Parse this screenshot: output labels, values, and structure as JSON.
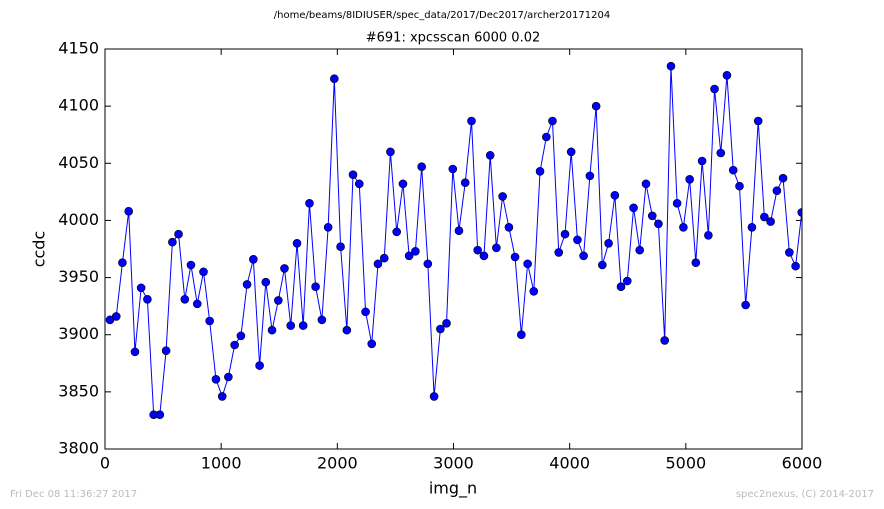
{
  "chart_data": {
    "type": "line",
    "suptitle": "/home/beams/8IDIUSER/spec_data/2017/Dec2017/archer20171204",
    "title": "#691: xpcsscan 6000 0.02",
    "x_label": "img_n",
    "y_label": "ccdc",
    "timestamp": "Fri Dec 08 11:36:27 2017",
    "credit": "spec2nexus, (C) 2014-2017",
    "xlim": [
      0,
      6000
    ],
    "ylim": [
      3800,
      4150
    ],
    "xticks": [
      0,
      1000,
      2000,
      3000,
      4000,
      5000,
      6000
    ],
    "yticks": [
      3800,
      3850,
      3900,
      3950,
      4000,
      4050,
      4100,
      4150
    ],
    "grid": false,
    "x": [
      43,
      97,
      150,
      204,
      258,
      311,
      365,
      419,
      472,
      526,
      580,
      633,
      687,
      740,
      794,
      848,
      901,
      955,
      1009,
      1062,
      1116,
      1170,
      1223,
      1277,
      1331,
      1384,
      1438,
      1492,
      1545,
      1599,
      1653,
      1706,
      1760,
      1813,
      1867,
      1921,
      1974,
      2028,
      2082,
      2135,
      2189,
      2243,
      2296,
      2350,
      2404,
      2457,
      2511,
      2565,
      2618,
      2672,
      2726,
      2779,
      2833,
      2887,
      2940,
      2994,
      3047,
      3101,
      3155,
      3208,
      3262,
      3316,
      3369,
      3423,
      3477,
      3530,
      3584,
      3638,
      3691,
      3745,
      3799,
      3852,
      3906,
      3960,
      4013,
      4067,
      4120,
      4174,
      4228,
      4281,
      4335,
      4389,
      4442,
      4496,
      4550,
      4603,
      4657,
      4711,
      4764,
      4818,
      4872,
      4925,
      4979,
      5033,
      5086,
      5140,
      5194,
      5247,
      5301,
      5354,
      5408,
      5462,
      5515,
      5569,
      5623,
      5676,
      5730,
      5784,
      5837,
      5891,
      5945,
      5998
    ],
    "series": [
      {
        "color": "#0000ff",
        "values": [
          3913,
          3916,
          3963,
          4008,
          3885,
          3941,
          3931,
          3830,
          3830,
          3886,
          3981,
          3988,
          3931,
          3961,
          3927,
          3955,
          3912,
          3861,
          3846,
          3863,
          3891,
          3899,
          3944,
          3966,
          3873,
          3946,
          3904,
          3930,
          3958,
          3908,
          3980,
          3908,
          4015,
          3942,
          3913,
          3994,
          4124,
          3977,
          3904,
          4040,
          4032,
          3920,
          3892,
          3962,
          3967,
          4060,
          3990,
          4032,
          3969,
          3973,
          4047,
          3962,
          3846,
          3905,
          3910,
          4045,
          3991,
          4033,
          4087,
          3974,
          3969,
          4057,
          3976,
          4021,
          3994,
          3968,
          3900,
          3962,
          3938,
          4043,
          4073,
          4087,
          3972,
          3988,
          4060,
          3983,
          3969,
          4039,
          4100,
          3961,
          3980,
          4022,
          3942,
          3947,
          4011,
          3974,
          4032,
          4004,
          3997,
          3895,
          4135,
          4015,
          3994,
          4036,
          3963,
          4052,
          3987,
          4115,
          4059,
          4127,
          4044,
          4030,
          3926,
          3994,
          4087,
          4003,
          3999,
          4026,
          4037,
          3972,
          3960,
          4007
        ]
      }
    ]
  }
}
